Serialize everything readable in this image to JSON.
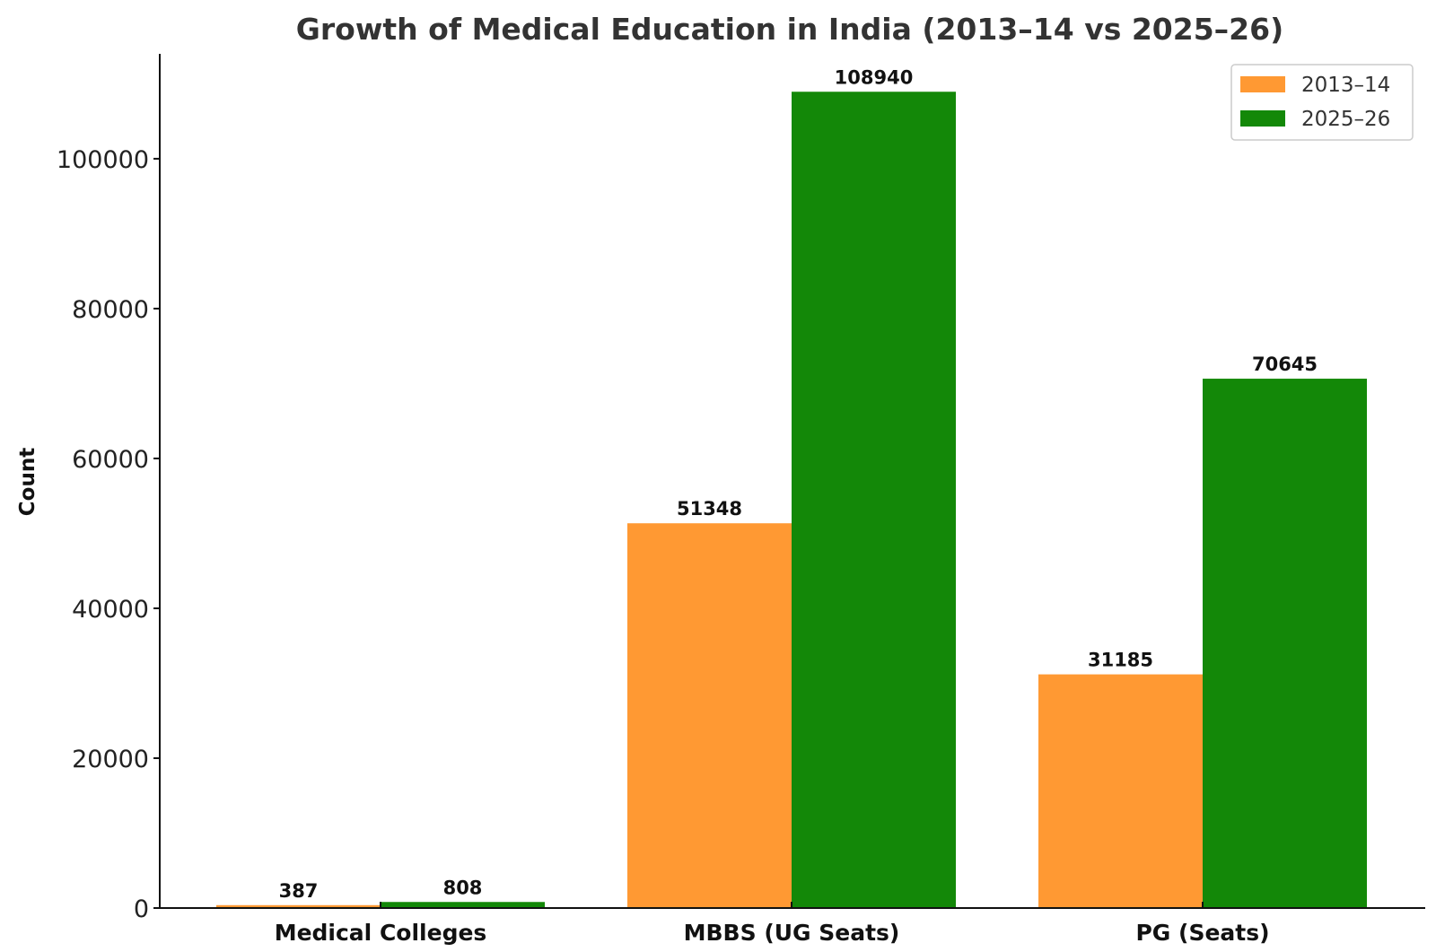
{
  "chart_data": {
    "type": "bar",
    "title": "Growth of Medical Education in India (2013–14 vs 2025–26)",
    "xlabel": "",
    "ylabel": "Count",
    "categories": [
      "Medical Colleges",
      "MBBS (UG Seats)",
      "PG (Seats)"
    ],
    "series": [
      {
        "name": "2013–14",
        "color": "#ff9933",
        "values": [
          387,
          51348,
          31185
        ]
      },
      {
        "name": "2025–26",
        "color": "#138808",
        "values": [
          808,
          108940,
          70645
        ]
      }
    ],
    "ylim": [
      0,
      114000
    ],
    "yticks": [
      0,
      20000,
      40000,
      60000,
      80000,
      100000
    ],
    "grid": false,
    "legend_position": "top-right"
  }
}
